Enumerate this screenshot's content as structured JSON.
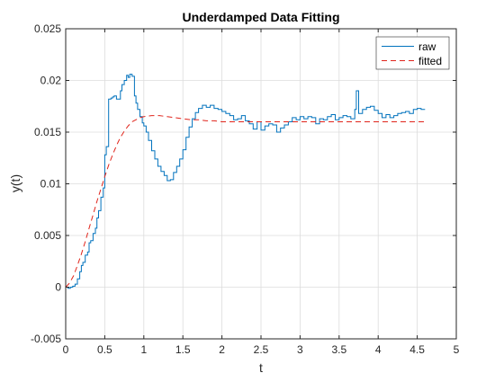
{
  "chart_data": {
    "type": "line",
    "title": "Underdamped Data Fitting",
    "xlabel": "t",
    "ylabel": "y(t)",
    "xlim": [
      0,
      5
    ],
    "ylim": [
      -0.005,
      0.025
    ],
    "xticks": [
      0,
      0.5,
      1,
      1.5,
      2,
      2.5,
      3,
      3.5,
      4,
      4.5,
      5
    ],
    "xtick_labels": [
      "0",
      "0.5",
      "1",
      "1.5",
      "2",
      "2.5",
      "3",
      "3.5",
      "4",
      "4.5",
      "5"
    ],
    "yticks": [
      -0.005,
      0,
      0.005,
      0.01,
      0.015,
      0.02,
      0.025
    ],
    "ytick_labels": [
      "-0.005",
      "0",
      "0.005",
      "0.01",
      "0.015",
      "0.02",
      "0.025"
    ],
    "grid": true,
    "legend_position": "top-right",
    "series": [
      {
        "name": "raw",
        "color": "#0072BD",
        "style": "solid",
        "x": [
          0,
          0.03,
          0.06,
          0.09,
          0.12,
          0.15,
          0.18,
          0.2,
          0.22,
          0.25,
          0.28,
          0.3,
          0.32,
          0.35,
          0.38,
          0.4,
          0.42,
          0.45,
          0.48,
          0.5,
          0.52,
          0.55,
          0.56,
          0.58,
          0.6,
          0.62,
          0.65,
          0.68,
          0.7,
          0.72,
          0.75,
          0.78,
          0.8,
          0.82,
          0.85,
          0.88,
          0.9,
          0.92,
          0.95,
          0.98,
          1.0,
          1.03,
          1.06,
          1.1,
          1.14,
          1.18,
          1.22,
          1.26,
          1.3,
          1.34,
          1.38,
          1.42,
          1.46,
          1.5,
          1.54,
          1.58,
          1.62,
          1.66,
          1.7,
          1.75,
          1.8,
          1.85,
          1.9,
          1.95,
          2.0,
          2.05,
          2.1,
          2.15,
          2.2,
          2.25,
          2.3,
          2.35,
          2.4,
          2.45,
          2.5,
          2.55,
          2.6,
          2.65,
          2.7,
          2.75,
          2.8,
          2.85,
          2.9,
          2.95,
          3.0,
          3.05,
          3.1,
          3.15,
          3.2,
          3.25,
          3.3,
          3.35,
          3.4,
          3.45,
          3.5,
          3.55,
          3.6,
          3.65,
          3.7,
          3.72,
          3.75,
          3.8,
          3.85,
          3.9,
          3.95,
          4.0,
          4.05,
          4.1,
          4.15,
          4.2,
          4.25,
          4.3,
          4.35,
          4.4,
          4.45,
          4.5,
          4.55,
          4.6
        ],
        "y": [
          0,
          -0.0001,
          0,
          0.0001,
          0.0003,
          0.0008,
          0.0015,
          0.0021,
          0.0024,
          0.0031,
          0.0034,
          0.0043,
          0.0045,
          0.0052,
          0.0057,
          0.0067,
          0.0074,
          0.0087,
          0.0096,
          0.0128,
          0.0136,
          0.0182,
          0.0182,
          0.0183,
          0.0184,
          0.0185,
          0.0182,
          0.0182,
          0.019,
          0.0196,
          0.02,
          0.0205,
          0.0203,
          0.0206,
          0.0204,
          0.0185,
          0.0178,
          0.0172,
          0.0165,
          0.0159,
          0.0156,
          0.015,
          0.0142,
          0.0132,
          0.0124,
          0.0117,
          0.0112,
          0.0108,
          0.0103,
          0.0104,
          0.0111,
          0.0117,
          0.0124,
          0.0133,
          0.0145,
          0.0155,
          0.0163,
          0.0169,
          0.0173,
          0.0176,
          0.0174,
          0.0176,
          0.0173,
          0.0172,
          0.017,
          0.0168,
          0.0166,
          0.0162,
          0.0163,
          0.0166,
          0.0161,
          0.0158,
          0.0153,
          0.016,
          0.0152,
          0.0156,
          0.0158,
          0.0157,
          0.015,
          0.0154,
          0.0157,
          0.016,
          0.0164,
          0.0162,
          0.0165,
          0.0163,
          0.0165,
          0.0164,
          0.0158,
          0.0163,
          0.0162,
          0.0165,
          0.0167,
          0.0162,
          0.0164,
          0.0166,
          0.0165,
          0.0163,
          0.0172,
          0.019,
          0.0168,
          0.0172,
          0.0174,
          0.0175,
          0.0171,
          0.0168,
          0.0164,
          0.0167,
          0.0164,
          0.0166,
          0.0168,
          0.0169,
          0.017,
          0.0168,
          0.0172,
          0.0173,
          0.0172,
          0.0172
        ]
      },
      {
        "name": "fitted",
        "color": "#D95319",
        "style": "dashed",
        "x": [
          0,
          0.05,
          0.1,
          0.15,
          0.2,
          0.25,
          0.3,
          0.35,
          0.4,
          0.45,
          0.5,
          0.55,
          0.6,
          0.65,
          0.7,
          0.75,
          0.8,
          0.85,
          0.9,
          0.95,
          1.0,
          1.1,
          1.2,
          1.3,
          1.4,
          1.5,
          1.6,
          1.7,
          1.8,
          1.9,
          2.0,
          2.2,
          2.4,
          2.6,
          2.8,
          3.0,
          3.2,
          3.4,
          3.6,
          3.8,
          4.0,
          4.2,
          4.4,
          4.6
        ],
        "y": [
          0,
          0.0004,
          0.0011,
          0.0021,
          0.0032,
          0.0044,
          0.0057,
          0.007,
          0.0083,
          0.0095,
          0.0107,
          0.0118,
          0.0128,
          0.0137,
          0.0145,
          0.0151,
          0.0156,
          0.016,
          0.0162,
          0.0164,
          0.0165,
          0.0166,
          0.0166,
          0.0165,
          0.0164,
          0.0163,
          0.0162,
          0.0162,
          0.0161,
          0.0161,
          0.016,
          0.016,
          0.016,
          0.016,
          0.016,
          0.016,
          0.016,
          0.016,
          0.016,
          0.016,
          0.016,
          0.016,
          0.016,
          0.016
        ]
      }
    ]
  }
}
